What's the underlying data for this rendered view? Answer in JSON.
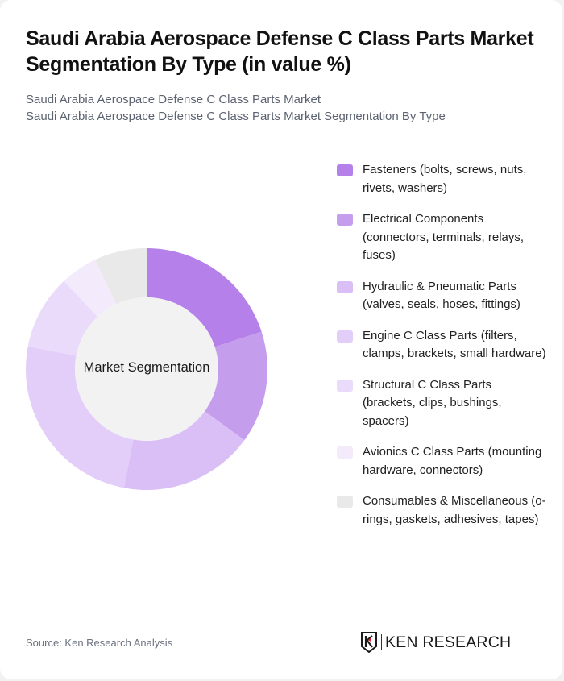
{
  "header": {
    "title": "Saudi Arabia Aerospace Defense C Class Parts Market Segmentation By Type (in value %)",
    "subtitle_lines": [
      "Saudi Arabia Aerospace Defense C Class Parts Market",
      "Saudi Arabia Aerospace Defense C Class Parts Market Segmentation By Type"
    ]
  },
  "chart": {
    "center_label": "Market Segmentation"
  },
  "legend": {
    "items": [
      {
        "label": "Fasteners (bolts, screws, nuts, rivets, washers)",
        "color": "#b580ea"
      },
      {
        "label": "Electrical Components (connectors, terminals, relays, fuses)",
        "color": "#c59ded"
      },
      {
        "label": "Hydraulic & Pneumatic Parts (valves, seals, hoses, fittings)",
        "color": "#dabff7"
      },
      {
        "label": "Engine C Class Parts (filters, clamps, brackets, small hardware)",
        "color": "#e2cef8"
      },
      {
        "label": "Structural C Class Parts (brackets, clips, bushings, spacers)",
        "color": "#e9dbf9"
      },
      {
        "label": "Avionics C Class Parts (mounting hardware, connectors)",
        "color": "#f3ebfc"
      },
      {
        "label": "Consumables & Miscellaneous (o-rings, gaskets, adhesives, tapes)",
        "color": "#e9e9e9"
      }
    ]
  },
  "footer": {
    "source": "Source: Ken Research Analysis",
    "logo_text": "KEN RESEARCH"
  },
  "chart_data": {
    "type": "pie",
    "subtype": "donut",
    "title": "Saudi Arabia Aerospace Defense C Class Parts Market Segmentation By Type (in value %)",
    "center_label": "Market Segmentation",
    "categories": [
      "Fasteners (bolts, screws, nuts, rivets, washers)",
      "Electrical Components (connectors, terminals, relays, fuses)",
      "Hydraulic & Pneumatic Parts (valves, seals, hoses, fittings)",
      "Engine C Class Parts (filters, clamps, brackets, small hardware)",
      "Structural C Class Parts (brackets, clips, bushings, spacers)",
      "Avionics C Class Parts (mounting hardware, connectors)",
      "Consumables & Miscellaneous (o-rings, gaskets, adhesives, tapes)"
    ],
    "values": [
      20,
      15,
      18,
      25,
      10,
      5,
      7
    ],
    "colors": [
      "#b580ea",
      "#c59ded",
      "#dabff7",
      "#e2cef8",
      "#e9dbf9",
      "#f3ebfc",
      "#e9e9e9"
    ],
    "legend_position": "right",
    "unit": "%"
  }
}
